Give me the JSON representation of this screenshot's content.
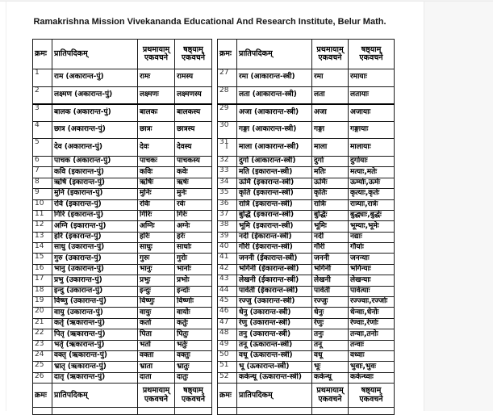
{
  "page": {
    "title": "Ramakrishna Mission Vivekananda Educational And Research Institute, Belur Math."
  },
  "columns": {
    "kram": "क्रमः",
    "pratipadikam": "प्रातिपदिकम्",
    "prathama": "प्रथमायाम् एकवचने",
    "shashthi": "षष्ठ्याम् एकवचने"
  },
  "icons": {
    "text_cursor_glyph": "I"
  },
  "left_rows": [
    [
      "1",
      "राम (अकारान्त-पुं)",
      "रामः",
      "रामस्य"
    ],
    [
      "2",
      "लक्ष्मण (अकारान्त-पुं)",
      "लक्ष्मणः",
      "लक्ष्मणस्य"
    ],
    [
      "3",
      "बालक (अकारान्त-पुं)",
      "बालकः",
      "बालकस्य"
    ],
    [
      "4",
      "छात्र (अकारान्त-पुं)",
      "छात्रः",
      "छात्रस्य"
    ],
    [
      "5",
      "देव (अकारान्त-पुं)",
      "देवः",
      "देवस्य"
    ],
    [
      "6",
      "पाचक (अकारान्त-पुं)",
      "पाचकः",
      "पाचकस्य"
    ],
    [
      "7",
      "कवि (इकारान्त-पुं)",
      "कविः",
      "कवेः"
    ],
    [
      "8",
      "ऋषि (इकारान्त-पुं)",
      "ऋषिः",
      "ऋषेः"
    ],
    [
      "9",
      "मुनि (इकारान्त-पुं)",
      "मुनिः",
      "मुनेः"
    ],
    [
      "10",
      "रवि (इकारान्त-पुं)",
      "रविः",
      "रवेः"
    ],
    [
      "11",
      "गिरि (इकारान्त-पुं)",
      "गिरिः",
      "गिरेः"
    ],
    [
      "12",
      "अग्नि (इकारान्त-पुं)",
      "अग्निः",
      "अग्नेः"
    ],
    [
      "13",
      "हरि (इकारान्त-पुं)",
      "हरिः",
      "हरेः"
    ],
    [
      "14",
      "साधु (उकारान्त-पुं)",
      "साधुः",
      "साधोः"
    ],
    [
      "15",
      "गुरु (उकारान्त-पुं)",
      "गुरुः",
      "गुरोः"
    ],
    [
      "16",
      "भानु (उकारान्त-पुं)",
      "भानुः",
      "भानोः"
    ],
    [
      "17",
      "प्रभु (उकारान्त-पुं)",
      "प्रभुः",
      "प्रभोः"
    ],
    [
      "18",
      "इन्दु (उकारान्त-पुं)",
      "इन्दुः",
      "इन्दोः"
    ],
    [
      "19",
      "विष्णु (उकारान्त-पुं)",
      "विष्णुः",
      "विष्णोः"
    ],
    [
      "20",
      "वायु (उकारान्त-पुं)",
      "वायुः",
      "वायोः"
    ],
    [
      "21",
      "कर्तृ (ऋकारान्त-पुं)",
      "कर्ता",
      "कर्तुः"
    ],
    [
      "22",
      "पितृ (ऋकारान्त-पुं)",
      "पिता",
      "पितुः"
    ],
    [
      "23",
      "भर्तृ (ऋकारान्त-पुं)",
      "भर्ता",
      "भर्तुः"
    ],
    [
      "24",
      "वक्तृ (ऋकारान्त-पुं)",
      "वक्ता",
      "वक्तुः"
    ],
    [
      "25",
      "भ्रातृ (ऋकारान्त-पुं)",
      "भ्राता",
      "भ्रातुः"
    ],
    [
      "26",
      "दातृ (ऋकारान्त-पुं)",
      "दाता",
      "दातुः"
    ]
  ],
  "right_rows": [
    [
      "27",
      "रमा (आकारान्त-स्त्री)",
      "रमा",
      "रमायाः"
    ],
    [
      "28",
      "लता (आकारान्त-स्त्री)",
      "लता",
      "लतायाः"
    ],
    [
      "29",
      "अजा (आकारान्त-स्त्री)",
      "अजा",
      "अजायाः"
    ],
    [
      "30",
      "गङ्गा (आकारान्त-स्त्री)",
      "गङ्गा",
      "गङ्गायाः"
    ],
    [
      "31",
      "माला (आकारान्त-स्त्री)",
      "माला",
      "मालायाः"
    ],
    [
      "32",
      "दुर्गा (आकारान्त-स्त्री)",
      "दुर्गा",
      "दुर्गायाः"
    ],
    [
      "33",
      "मति (इकारान्त-स्त्री)",
      "मतिः",
      "मत्याः,मतेः"
    ],
    [
      "34",
      "ऊर्मि (इकारान्त-स्त्री)",
      "ऊर्मिः",
      "ऊर्म्याः,ऊर्मेः"
    ],
    [
      "35",
      "कृति (इकारान्त-स्त्री)",
      "कृतिः",
      "कृत्याः,कृतेः"
    ],
    [
      "36",
      "रात्रि (इकारान्त-स्त्री)",
      "रात्रिः",
      "रात्र्याः,रात्रेः"
    ],
    [
      "37",
      "बुद्धि (इकारान्त-स्त्री)",
      "बुद्धिः",
      "बुद्ध्याः,बुद्धेः"
    ],
    [
      "38",
      "भूमि (इकारान्त-स्त्री)",
      "भूमिः",
      "भूम्याः,भूमेः"
    ],
    [
      "39",
      "नदी (ईकारान्त-स्त्री)",
      "नदी",
      "नद्याः"
    ],
    [
      "40",
      "गौरी (ईकारान्त-स्त्री)",
      "गौरी",
      "गौर्याः"
    ],
    [
      "41",
      "जननी (ईकारान्त-स्त्री)",
      "जननी",
      "जनन्याः"
    ],
    [
      "42",
      "भगिनी (ईकारान्त-स्त्री)",
      "भगिनी",
      "भगिन्याः"
    ],
    [
      "43",
      "लेखनी (ईकारान्त-स्त्री)",
      "लेखनी",
      "लेखन्याः"
    ],
    [
      "44",
      "पार्वती (ईकारान्त-स्त्री)",
      "पार्वती",
      "पार्वत्याः"
    ],
    [
      "45",
      "रज्जु (उकारान्त-स्त्री)",
      "रज्जुः",
      "रज्ज्वाः,रज्जोः"
    ],
    [
      "46",
      "धेनु (उकारान्त-स्त्री)",
      "धेनुः",
      "धेन्वाः,धेनोः"
    ],
    [
      "47",
      "रेणु (उकारान्त-स्त्री)",
      "रेणुः",
      "रेण्वाः,रेणोः"
    ],
    [
      "48",
      "तनु (उकारान्त-स्त्री)",
      "तनुः",
      "तन्वाः,तनोः"
    ],
    [
      "49",
      "तनू (ऊकारान्त-स्त्री)",
      "तनू",
      "तन्वाः"
    ],
    [
      "50",
      "वधू (ऊकारान्त-स्त्री)",
      "वधू",
      "वध्वाः"
    ],
    [
      "51",
      "भू (ऊकारान्त-स्त्री)",
      "भूः",
      "भुवाः,भुवः"
    ],
    [
      "52",
      "कर्कन्धू (ऊकारान्त-स्त्री)",
      "कर्कन्धू",
      "कर्कन्ध्वाः"
    ]
  ]
}
